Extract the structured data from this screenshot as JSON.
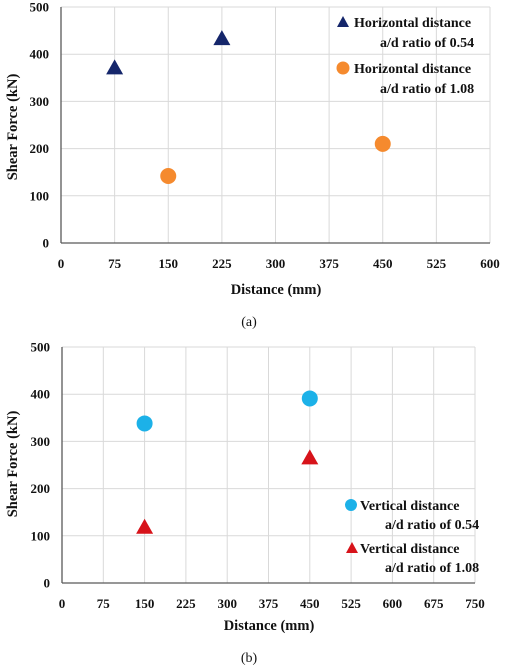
{
  "chart_data": [
    {
      "type": "scatter",
      "caption": "(a)",
      "xlabel": "Distance (mm)",
      "ylabel": "Shear Force (kN)",
      "xlim": [
        0,
        600
      ],
      "ylim": [
        0,
        500
      ],
      "xticks": [
        0,
        75,
        150,
        225,
        300,
        375,
        450,
        525,
        600
      ],
      "yticks": [
        0,
        100,
        200,
        300,
        400,
        500
      ],
      "grid": true,
      "legend_position": "top-right",
      "series": [
        {
          "name": "Horizontal distance",
          "name2": "a/d ratio of 0.54",
          "marker": "triangle",
          "color": "#15266b",
          "points": [
            {
              "x": 75,
              "y": 370
            },
            {
              "x": 225,
              "y": 432
            }
          ]
        },
        {
          "name": "Horizontal distance",
          "name2": "a/d ratio of 1.08",
          "marker": "circle",
          "color": "#f58a2e",
          "points": [
            {
              "x": 150,
              "y": 142
            },
            {
              "x": 450,
              "y": 210
            }
          ]
        }
      ]
    },
    {
      "type": "scatter",
      "caption": "(b)",
      "xlabel": "Distance (mm)",
      "ylabel": "Shear Force (kN)",
      "xlim": [
        0,
        750
      ],
      "ylim": [
        0,
        500
      ],
      "xticks": [
        0,
        75,
        150,
        225,
        300,
        375,
        450,
        525,
        600,
        675,
        750
      ],
      "yticks": [
        0,
        100,
        200,
        300,
        400,
        500
      ],
      "grid": true,
      "legend_position": "bottom-right",
      "series": [
        {
          "name": "Vertical distance",
          "name2": "a/d ratio of 0.54",
          "marker": "circle",
          "color": "#1cb1e8",
          "points": [
            {
              "x": 150,
              "y": 338
            },
            {
              "x": 450,
              "y": 391
            }
          ]
        },
        {
          "name": "Vertical distance",
          "name2": "a/d ratio of 1.08",
          "marker": "triangle",
          "color": "#d7131a",
          "points": [
            {
              "x": 150,
              "y": 117
            },
            {
              "x": 450,
              "y": 264
            }
          ]
        }
      ]
    }
  ]
}
